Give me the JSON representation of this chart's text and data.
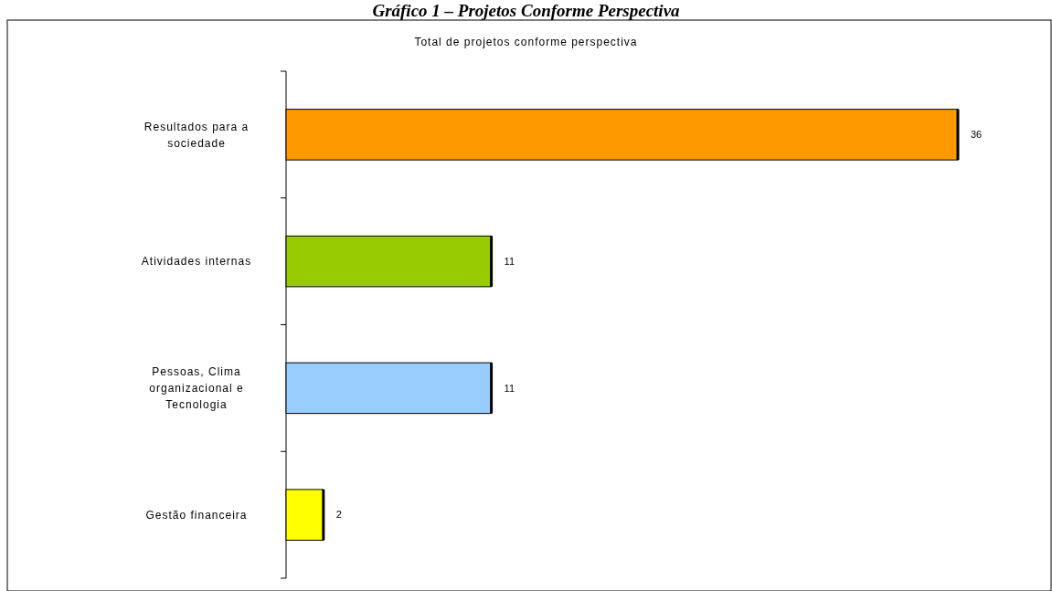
{
  "chart_data": {
    "type": "bar",
    "orientation": "horizontal",
    "title": "Gráfico 1 – Projetos Conforme Perspectiva",
    "subtitle": "Total de projetos conforme perspectiva",
    "categories": [
      "Resultados para a sociedade",
      "Atividades internas",
      "Pessoas, Clima organizacional e Tecnologia",
      "Gestão financeira"
    ],
    "values": [
      36,
      11,
      11,
      2
    ],
    "colors": [
      "#ff9900",
      "#99cc00",
      "#99ccff",
      "#ffff00"
    ],
    "data_labels": true
  }
}
